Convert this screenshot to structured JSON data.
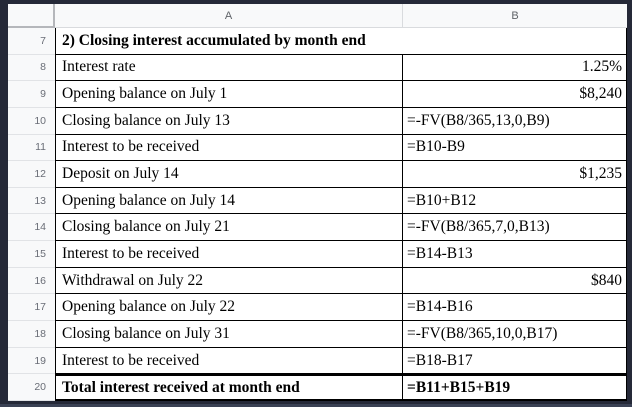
{
  "sheet": {
    "column_headers": {
      "a": "A",
      "b": "B"
    },
    "rows": [
      {
        "num": "7",
        "a": "2) Closing interest accumulated by month end",
        "b": ""
      },
      {
        "num": "8",
        "a": "Interest rate",
        "b": "1.25%"
      },
      {
        "num": "9",
        "a": "Opening balance on July 1",
        "b": "$8,240"
      },
      {
        "num": "10",
        "a": "Closing balance on July 13",
        "b": "=-FV(B8/365,13,0,B9)"
      },
      {
        "num": "11",
        "a": "Interest to be received",
        "b": "=B10-B9"
      },
      {
        "num": "12",
        "a": "Deposit on July 14",
        "b": "$1,235"
      },
      {
        "num": "13",
        "a": "Opening balance on July 14",
        "b": "=B10+B12"
      },
      {
        "num": "14",
        "a": "Closing balance on July 21",
        "b": "=-FV(B8/365,7,0,B13)"
      },
      {
        "num": "15",
        "a": "Interest to be received",
        "b": "=B14-B13"
      },
      {
        "num": "16",
        "a": "Withdrawal on July 22",
        "b": "$840"
      },
      {
        "num": "17",
        "a": "Opening balance on July 22",
        "b": "=B14-B16"
      },
      {
        "num": "18",
        "a": "Closing balance on July 31",
        "b": "=-FV(B8/365,10,0,B17)"
      },
      {
        "num": "19",
        "a": "Interest to be received",
        "b": "=B18-B17"
      },
      {
        "num": "20",
        "a": "Total interest received at month end",
        "b": "=B11+B15+B19"
      }
    ]
  },
  "colors": {
    "frame_background": "#252938",
    "header_background": "#f8f9fa",
    "header_text": "#5f6368",
    "cell_border": "#000000",
    "cell_background": "#ffffff"
  }
}
